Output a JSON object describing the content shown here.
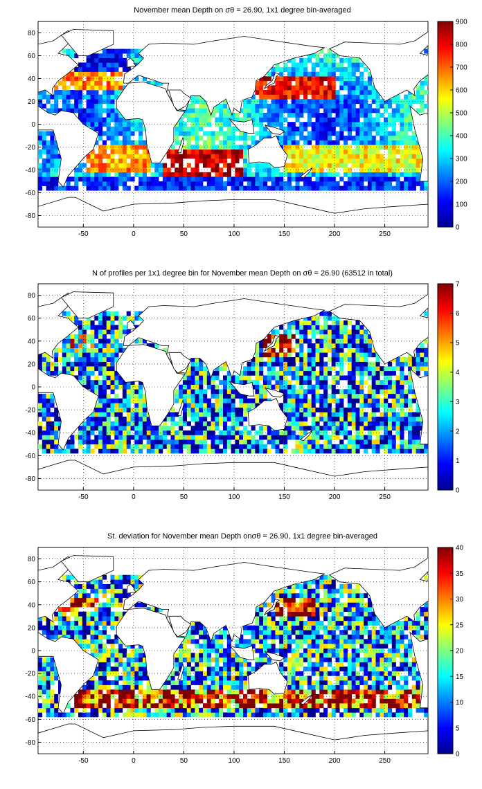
{
  "figure": {
    "panels": [
      {
        "title": "November mean Depth on σθ = 26.90, 1x1 degree bin-averaged",
        "colorbar_ticks": [
          "900",
          "800",
          "700",
          "600",
          "500",
          "400",
          "300",
          "200",
          "100",
          "0"
        ],
        "colorbar_values": [
          900,
          800,
          700,
          600,
          500,
          400,
          300,
          200,
          100,
          0
        ]
      },
      {
        "title": "N of profiles per 1x1 degree bin for November mean Depth on σθ = 26.90 (63512 in total)",
        "colorbar_ticks": [
          "7",
          "6",
          "5",
          "4",
          "3",
          "2",
          "1",
          "0"
        ],
        "colorbar_values": [
          7,
          6,
          5,
          4,
          3,
          2,
          1,
          0
        ]
      },
      {
        "title": "St. deviation for November mean Depth onσθ = 26.90, 1x1 degree bin-averaged",
        "colorbar_ticks": [
          "40",
          "35",
          "30",
          "25",
          "20",
          "15",
          "10",
          "5",
          "0"
        ],
        "colorbar_values": [
          40,
          35,
          30,
          25,
          20,
          15,
          10,
          5,
          0
        ]
      }
    ],
    "x_tick_labels": [
      "-50",
      "0",
      "50",
      "100",
      "150",
      "200",
      "250"
    ],
    "x_tick_values": [
      -50,
      0,
      50,
      100,
      150,
      200,
      250
    ],
    "y_tick_labels": [
      "80",
      "60",
      "40",
      "20",
      "0",
      "-20",
      "-40",
      "-60",
      "-80"
    ],
    "y_tick_values": [
      80,
      60,
      40,
      20,
      0,
      -20,
      -40,
      -60,
      -80
    ],
    "colormap": [
      "#00008f",
      "#0000ff",
      "#007fff",
      "#00ffff",
      "#7fff7f",
      "#ffff00",
      "#ff7f00",
      "#ff0000",
      "#7f0000"
    ]
  },
  "chart_data": [
    {
      "type": "heatmap",
      "title": "November mean Depth on σθ = 26.90, 1x1 degree bin-averaged",
      "xlim": [
        -95,
        293
      ],
      "ylim": [
        -90,
        90
      ],
      "x_ticks": [
        -50,
        0,
        50,
        100,
        150,
        200,
        250
      ],
      "y_ticks": [
        -80,
        -60,
        -40,
        -20,
        0,
        20,
        40,
        60,
        80
      ],
      "grid": true,
      "colorbar_range": [
        0,
        900
      ],
      "colormap": "jet",
      "regions": [
        {
          "lon": [
            -80,
            -10
          ],
          "lat": [
            30,
            45
          ],
          "value": 650
        },
        {
          "lon": [
            -60,
            -5
          ],
          "lat": [
            40,
            65
          ],
          "value": 120
        },
        {
          "lon": [
            -45,
            15
          ],
          "lat": [
            -40,
            -20
          ],
          "value": 650
        },
        {
          "lon": [
            30,
            110
          ],
          "lat": [
            -45,
            -22
          ],
          "value": 830
        },
        {
          "lon": [
            120,
            200
          ],
          "lat": [
            22,
            42
          ],
          "value": 800
        },
        {
          "lon": [
            150,
            290
          ],
          "lat": [
            -40,
            -20
          ],
          "value": 550
        },
        {
          "lon": [
            40,
            100
          ],
          "lat": [
            -10,
            20
          ],
          "value": 380
        },
        {
          "lon": [
            -95,
            290
          ],
          "lat": [
            -60,
            -48
          ],
          "value": 150
        }
      ]
    },
    {
      "type": "heatmap",
      "title": "N of profiles per 1x1 degree bin for November mean Depth on σθ = 26.90 (63512 in total)",
      "xlim": [
        -95,
        293
      ],
      "ylim": [
        -90,
        90
      ],
      "x_ticks": [
        -50,
        0,
        50,
        100,
        150,
        200,
        250
      ],
      "y_ticks": [
        -80,
        -60,
        -40,
        -20,
        0,
        20,
        40,
        60,
        80
      ],
      "grid": true,
      "colorbar_range": [
        0,
        7
      ],
      "colormap": "jet",
      "total_profiles": 63512,
      "regions": [
        {
          "lon": [
            130,
            160
          ],
          "lat": [
            25,
            45
          ],
          "value": 6
        },
        {
          "lon": [
            -80,
            -40
          ],
          "lat": [
            30,
            45
          ],
          "value": 4
        },
        {
          "lon": [
            -95,
            290
          ],
          "lat": [
            -60,
            60
          ],
          "value": 2
        }
      ]
    },
    {
      "type": "heatmap",
      "title": "St. deviation for November mean Depth onσθ = 26.90, 1x1 degree bin-averaged",
      "xlim": [
        -95,
        293
      ],
      "ylim": [
        -90,
        90
      ],
      "x_ticks": [
        -50,
        0,
        50,
        100,
        150,
        200,
        250
      ],
      "y_ticks": [
        -80,
        -60,
        -40,
        -20,
        0,
        20,
        40,
        60,
        80
      ],
      "grid": true,
      "colorbar_range": [
        0,
        40
      ],
      "colormap": "jet",
      "regions": [
        {
          "lon": [
            -80,
            -35
          ],
          "lat": [
            35,
            45
          ],
          "value": 38
        },
        {
          "lon": [
            140,
            180
          ],
          "lat": [
            30,
            45
          ],
          "value": 38
        },
        {
          "lon": [
            -60,
            290
          ],
          "lat": [
            -50,
            -35
          ],
          "value": 35
        },
        {
          "lon": [
            -95,
            290
          ],
          "lat": [
            -35,
            35
          ],
          "value": 12
        }
      ]
    }
  ]
}
